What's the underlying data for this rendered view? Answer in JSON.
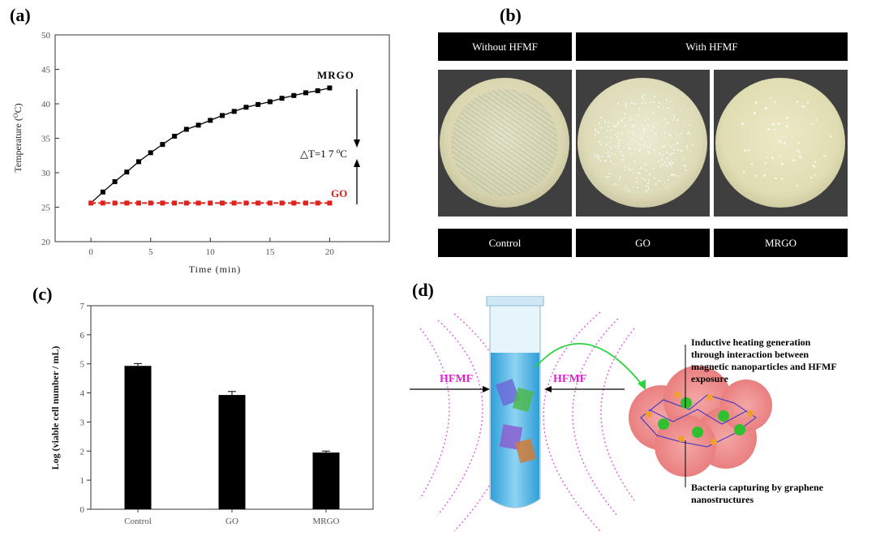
{
  "panels": {
    "a": {
      "label": "(a)"
    },
    "b": {
      "label": "(b)"
    },
    "c": {
      "label": "(c)"
    },
    "d": {
      "label": "(d)"
    }
  },
  "chart_data": [
    {
      "type": "line",
      "panel": "(a)",
      "xlabel": "Time (min)",
      "ylabel": "Temperature (°C)",
      "ylabel_main": "Temperature (",
      "ylabel_sup": "O",
      "ylabel_end": "C)",
      "xlim": [
        -3,
        25
      ],
      "ylim": [
        20,
        50
      ],
      "xticks": [
        0,
        5,
        10,
        15,
        20
      ],
      "yticks": [
        20,
        25,
        30,
        35,
        40,
        45,
        50
      ],
      "series": [
        {
          "name": "MRGO",
          "color": "#000000",
          "x": [
            0,
            1,
            2,
            3,
            4,
            5,
            6,
            7,
            8,
            9,
            10,
            11,
            12,
            13,
            14,
            15,
            16,
            17,
            18,
            19,
            20
          ],
          "y": [
            25.6,
            27.2,
            28.7,
            30.1,
            31.6,
            32.9,
            34.1,
            35.3,
            36.3,
            36.9,
            37.6,
            38.3,
            38.9,
            39.5,
            39.9,
            40.3,
            40.8,
            41.2,
            41.6,
            41.9,
            42.3
          ]
        },
        {
          "name": "GO",
          "color": "#e0221d",
          "x": [
            0,
            1,
            2,
            3,
            4,
            5,
            6,
            7,
            8,
            9,
            10,
            11,
            12,
            13,
            14,
            15,
            16,
            17,
            18,
            19,
            20
          ],
          "y": [
            25.6,
            25.6,
            25.6,
            25.6,
            25.6,
            25.6,
            25.6,
            25.6,
            25.6,
            25.6,
            25.6,
            25.6,
            25.6,
            25.6,
            25.6,
            25.6,
            25.6,
            25.6,
            25.6,
            25.6,
            25.6
          ]
        }
      ],
      "annotation": {
        "prefix": "△T=1 7 ",
        "sup": "o",
        "suffix": "C"
      }
    },
    {
      "type": "bar",
      "panel": "(c)",
      "ylabel": "Log (viable cell number / mL)",
      "ylim": [
        0,
        7
      ],
      "yticks": [
        0,
        1,
        2,
        3,
        4,
        5,
        6,
        7
      ],
      "categories": [
        "Control",
        "GO",
        "MRGO"
      ],
      "values": [
        4.93,
        3.93,
        1.95
      ],
      "errors": [
        0.08,
        0.12,
        0.05
      ]
    }
  ],
  "photos": {
    "header_left": "Without HFMF",
    "header_right": "With HFMF",
    "captions": [
      "Control",
      "GO",
      "MRGO"
    ]
  },
  "schematic": {
    "hfmf_left": "HFMF",
    "hfmf_right": "HFMF",
    "callout_top": [
      "Inductive heating generation",
      "through interaction between",
      "magnetic nanoparticles and HFMF",
      "exposure"
    ],
    "callout_bottom": [
      "Bacteria capturing by graphene",
      "nanostructures"
    ]
  }
}
